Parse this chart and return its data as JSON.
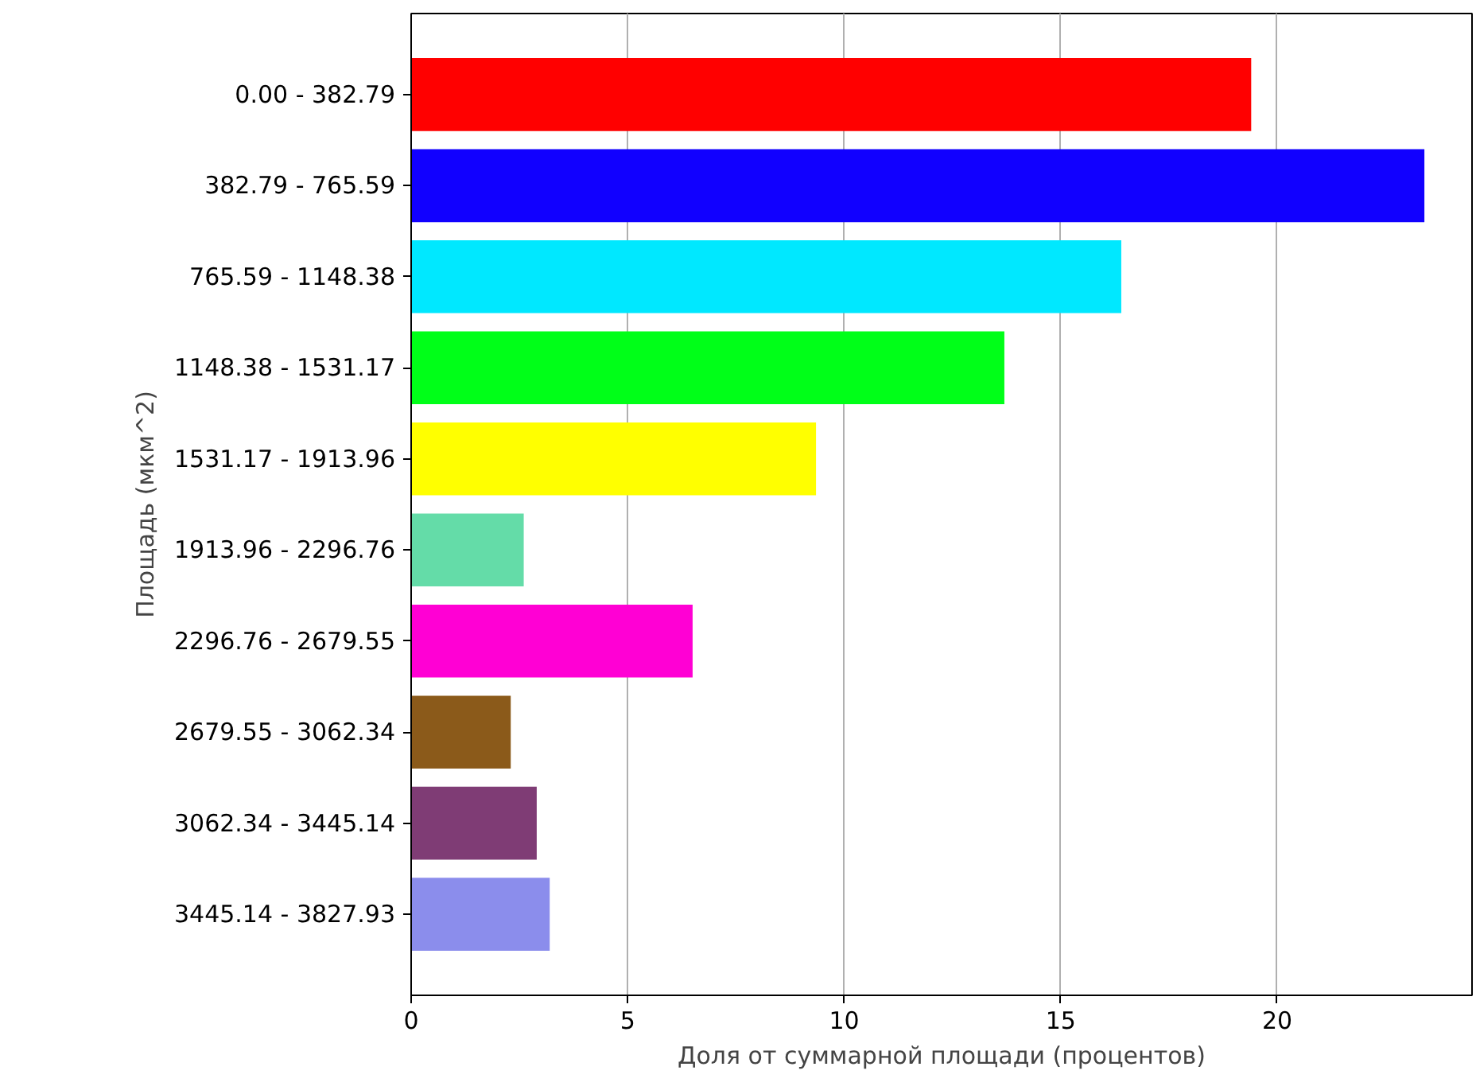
{
  "chart_data": {
    "type": "bar",
    "orientation": "horizontal",
    "xlabel": "Доля от суммарной площади (процентов)",
    "ylabel": "Площадь (мкм^2)",
    "categories": [
      "0.00 - 382.79",
      "382.79 - 765.59",
      "765.59 - 1148.38",
      "1148.38 - 1531.17",
      "1531.17 - 1913.96",
      "1913.96 - 2296.76",
      "2296.76 - 2679.55",
      "2679.55 - 3062.34",
      "3062.34 - 3445.14",
      "3445.14 - 3827.93"
    ],
    "values": [
      19.4,
      23.4,
      16.4,
      13.7,
      9.35,
      2.6,
      6.5,
      2.3,
      2.9,
      3.2
    ],
    "colors": [
      "#ff0000",
      "#1100ff",
      "#00e8ff",
      "#00ff18",
      "#ffff00",
      "#64dca8",
      "#ff00d4",
      "#8b5a1a",
      "#7f3c75",
      "#8b8dec"
    ],
    "xlim": [
      0,
      24.5
    ],
    "xticks": [
      0,
      5,
      10,
      15,
      20
    ],
    "grid": "x"
  }
}
